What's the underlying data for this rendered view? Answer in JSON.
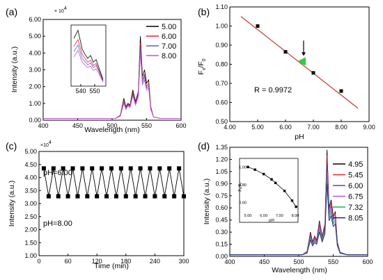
{
  "chart_data": [
    {
      "panel": "(a)",
      "type": "line",
      "xlabel": "Wavelength (nm)",
      "ylabel": "Intensity (a.u.)",
      "multiplier": "× 10",
      "multiplier_exp": "4",
      "xlim": [
        400,
        600
      ],
      "ylim": [
        0,
        6
      ],
      "xticks": [
        "400",
        "450",
        "500",
        "550",
        "600"
      ],
      "yticks": [
        "0.00",
        "1.00",
        "2.00",
        "3.00",
        "4.00",
        "5.00",
        "6.00"
      ],
      "x": [
        505,
        512,
        517,
        520,
        523,
        526,
        530,
        534,
        538,
        541,
        544,
        547,
        550,
        553,
        556,
        560,
        570
      ],
      "series": [
        {
          "name": "5.00",
          "color": "#000000",
          "values": [
            0.1,
            0.3,
            1.3,
            0.8,
            1.0,
            0.9,
            1.8,
            1.1,
            1.7,
            5.0,
            2.6,
            3.0,
            2.2,
            2.4,
            0.8,
            0.2,
            0.1
          ]
        },
        {
          "name": "6.00",
          "color": "#e8203a",
          "values": [
            0.1,
            0.3,
            1.2,
            0.75,
            0.95,
            0.85,
            1.65,
            1.0,
            1.6,
            4.6,
            2.4,
            2.75,
            2.0,
            2.2,
            0.75,
            0.2,
            0.1
          ]
        },
        {
          "name": "7.00",
          "color": "#4a6fb8",
          "values": [
            0.1,
            0.25,
            1.1,
            0.7,
            0.9,
            0.8,
            1.55,
            0.95,
            1.5,
            4.3,
            2.25,
            2.6,
            1.9,
            2.05,
            0.7,
            0.2,
            0.1
          ]
        },
        {
          "name": "8.00",
          "color": "#c94fd6",
          "values": [
            0.1,
            0.25,
            1.0,
            0.65,
            0.85,
            0.75,
            1.45,
            0.9,
            1.4,
            4.0,
            2.1,
            2.4,
            1.8,
            1.9,
            0.65,
            0.2,
            0.1
          ]
        }
      ],
      "inset": {
        "xticks": [
          "540",
          "550"
        ],
        "x": [
          535,
          538,
          541,
          543,
          545,
          547,
          549,
          551,
          553,
          556
        ],
        "series": [
          {
            "name": "5.00",
            "values": [
              4.4,
              5.0,
              3.6,
              3.2,
              2.9,
              3.1,
              2.6,
              2.8,
              2.2,
              1.3
            ]
          },
          {
            "name": "6.00",
            "values": [
              3.8,
              4.3,
              3.2,
              2.9,
              2.6,
              2.75,
              2.35,
              2.5,
              2.0,
              1.2
            ]
          },
          {
            "name": "7.00",
            "values": [
              3.4,
              3.9,
              2.9,
              2.65,
              2.4,
              2.55,
              2.2,
              2.35,
              1.9,
              1.15
            ]
          },
          {
            "name": "8.00",
            "values": [
              3.0,
              3.5,
              2.6,
              2.4,
              2.2,
              2.3,
              2.0,
              2.1,
              1.75,
              1.1
            ]
          }
        ]
      }
    },
    {
      "panel": "(b)",
      "type": "scatter",
      "xlabel": "pH",
      "ylabel_main": "F",
      "ylabel_sub1": "x",
      "ylabel_mid": "/F",
      "ylabel_sub2": "0",
      "xlim": [
        4.0,
        9.0
      ],
      "ylim": [
        0.5,
        1.1
      ],
      "xticks": [
        "4.00",
        "5.00",
        "6.00",
        "7.00",
        "8.00",
        "9.00"
      ],
      "yticks": [
        "0.50",
        "0.60",
        "0.70",
        "0.80",
        "0.90",
        "1.00",
        "1.10"
      ],
      "points": [
        {
          "x": 5.0,
          "y": 1.0
        },
        {
          "x": 6.0,
          "y": 0.865
        },
        {
          "x": 7.0,
          "y": 0.755
        },
        {
          "x": 8.0,
          "y": 0.66
        }
      ],
      "fit": {
        "x": [
          4.4,
          8.6
        ],
        "y": [
          1.05,
          0.57
        ],
        "color": "#c0392b"
      },
      "highlight": {
        "x": 6.6,
        "y": 0.815,
        "color": "#2ecc40"
      },
      "annotation": "R = 0.9972"
    },
    {
      "panel": "(c)",
      "type": "line",
      "xlabel": "Time (min)",
      "ylabel": "Intensity (a.u.)",
      "multiplier": "×10",
      "multiplier_exp": "4",
      "xlim": [
        0,
        300
      ],
      "ylim": [
        1.0,
        5.0
      ],
      "xticks": [
        "0",
        "60",
        "120",
        "180",
        "240",
        "300"
      ],
      "yticks": [
        "1.00",
        "1.50",
        "2.00",
        "2.50",
        "3.00",
        "3.50",
        "4.00",
        "4.50",
        "5.00"
      ],
      "high_label": "pH=6.00",
      "low_label": "pH=8.00",
      "high_value": 4.35,
      "low_value": 3.28,
      "x": [
        10,
        20,
        30,
        40,
        50,
        60,
        70,
        80,
        90,
        100,
        110,
        120,
        130,
        140,
        150,
        160,
        170,
        180,
        190,
        200,
        210,
        220,
        230,
        240,
        250,
        260,
        270,
        280,
        290,
        300
      ]
    },
    {
      "panel": "(d)",
      "type": "line",
      "xlabel": "Wavelength (nm)",
      "ylabel": "Intensity (a.u.)",
      "xlim": [
        400,
        600
      ],
      "ylim": [
        0,
        1.35
      ],
      "xticks": [
        "400",
        "450",
        "500",
        "550",
        "600"
      ],
      "yticks": [
        "0.00",
        "0.15",
        "0.30",
        "0.45",
        "0.60",
        "0.75",
        "0.90",
        "1.05",
        "1.20",
        "1.35"
      ],
      "x": [
        505,
        512,
        517,
        520,
        523,
        526,
        530,
        534,
        538,
        541,
        544,
        547,
        550,
        553,
        556,
        560,
        570
      ],
      "series": [
        {
          "name": "4.95",
          "color": "#000000",
          "values": [
            0.02,
            0.06,
            0.3,
            0.18,
            0.25,
            0.2,
            0.44,
            0.25,
            0.4,
            1.32,
            0.6,
            0.7,
            0.5,
            0.55,
            0.18,
            0.05,
            0.02
          ]
        },
        {
          "name": "5.45",
          "color": "#e8203a",
          "values": [
            0.02,
            0.06,
            0.28,
            0.17,
            0.24,
            0.19,
            0.42,
            0.24,
            0.38,
            1.25,
            0.57,
            0.66,
            0.48,
            0.52,
            0.17,
            0.05,
            0.02
          ]
        },
        {
          "name": "6.00",
          "color": "#3f51b5",
          "values": [
            0.02,
            0.05,
            0.26,
            0.16,
            0.22,
            0.18,
            0.39,
            0.22,
            0.35,
            1.15,
            0.53,
            0.62,
            0.45,
            0.49,
            0.16,
            0.05,
            0.02
          ]
        },
        {
          "name": "6.75",
          "color": "#c94fd6",
          "values": [
            0.02,
            0.05,
            0.24,
            0.15,
            0.2,
            0.17,
            0.36,
            0.21,
            0.33,
            1.05,
            0.5,
            0.58,
            0.42,
            0.46,
            0.15,
            0.04,
            0.02
          ]
        },
        {
          "name": "7.32",
          "color": "#22b14c",
          "values": [
            0.02,
            0.05,
            0.22,
            0.14,
            0.19,
            0.16,
            0.33,
            0.2,
            0.31,
            0.98,
            0.47,
            0.54,
            0.4,
            0.43,
            0.14,
            0.04,
            0.02
          ]
        },
        {
          "name": "8.05",
          "color": "#1a237e",
          "values": [
            0.02,
            0.04,
            0.2,
            0.13,
            0.17,
            0.15,
            0.3,
            0.18,
            0.28,
            0.9,
            0.44,
            0.5,
            0.37,
            0.4,
            0.13,
            0.04,
            0.02
          ]
        }
      ],
      "inset": {
        "xlabel": "pH",
        "ylabel": "Fₓ/F₀",
        "xticks": [
          "5.00",
          "6.00",
          "7.00",
          "8.00"
        ],
        "yticks": [
          "0.60",
          "0.80",
          "1.00"
        ],
        "xlim": [
          5.0,
          8.0
        ],
        "ylim": [
          0.5,
          1.05
        ],
        "points": [
          {
            "x": 5.0,
            "y": 1.0
          },
          {
            "x": 5.45,
            "y": 0.97
          },
          {
            "x": 6.0,
            "y": 0.92
          },
          {
            "x": 6.5,
            "y": 0.86
          },
          {
            "x": 6.75,
            "y": 0.82
          },
          {
            "x": 7.32,
            "y": 0.73
          },
          {
            "x": 7.8,
            "y": 0.62
          },
          {
            "x": 8.05,
            "y": 0.55
          }
        ]
      }
    }
  ]
}
